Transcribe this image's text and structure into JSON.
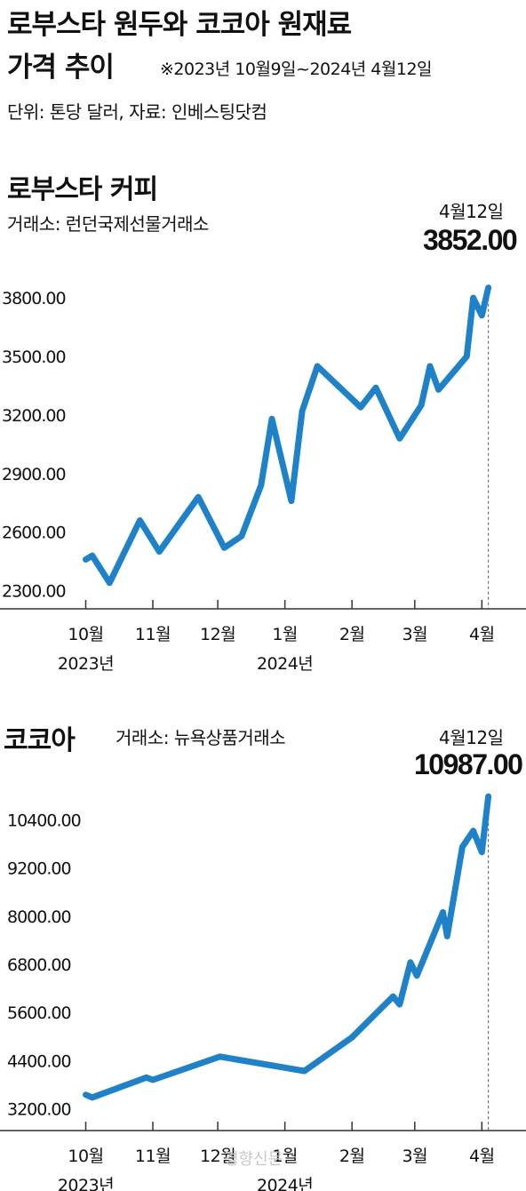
{
  "header": {
    "title_line1": "로부스타 원두와 코코아 원재료",
    "title_line2": "가격 추이",
    "period_note": "※2023년 10월9일~2024년 4월12일",
    "unit_note": "단위: 톤당 달러, 자료: 인베스팅닷컴"
  },
  "colors": {
    "line": "#1f82c8",
    "axis": "#333333",
    "dashed": "#555555"
  },
  "watermark": "경향신문",
  "chart_data": [
    {
      "type": "line",
      "title": "로부스타 커피",
      "source": "거래소: 런던국제선물거래소",
      "latest_label_date": "4월12일",
      "latest_label_value": "3852.00",
      "yticks": [
        "3800.00",
        "3500.00",
        "3200.00",
        "2900.00",
        "2600.00",
        "2300.00"
      ],
      "ytick_values": [
        3800,
        3500,
        3200,
        2900,
        2600,
        2300
      ],
      "ylim": [
        2230,
        3960
      ],
      "xlim": [
        "2023-10-01",
        "2024-04-22"
      ],
      "xtick_labels": [
        "10월",
        "11월",
        "12월",
        "1월",
        "2월",
        "3월",
        "4월"
      ],
      "xtick_dates": [
        "2023-10-09",
        "2023-11-09",
        "2023-12-09",
        "2024-01-09",
        "2024-02-09",
        "2024-03-09",
        "2024-04-09"
      ],
      "year_labels": [
        {
          "text": "2023년",
          "date": "2023-10-09"
        },
        {
          "text": "2024년",
          "date": "2024-01-09"
        }
      ],
      "series": [
        {
          "x": [
            "2023-10-09",
            "2023-10-12",
            "2023-10-20",
            "2023-11-03",
            "2023-11-12",
            "2023-11-30",
            "2023-12-12",
            "2023-12-20",
            "2023-12-29",
            "2024-01-03",
            "2024-01-12",
            "2024-01-17",
            "2024-01-24",
            "2024-02-13",
            "2024-02-20",
            "2024-03-02",
            "2024-03-12",
            "2024-03-16",
            "2024-03-20",
            "2024-04-02",
            "2024-04-05",
            "2024-04-09",
            "2024-04-12"
          ],
          "y": [
            2460,
            2480,
            2340,
            2660,
            2500,
            2780,
            2520,
            2580,
            2840,
            3180,
            2760,
            3220,
            3450,
            3240,
            3340,
            3080,
            3250,
            3450,
            3330,
            3500,
            3800,
            3710,
            3852
          ]
        }
      ]
    },
    {
      "type": "line",
      "title": "코코아",
      "source": "거래소: 뉴욕상품거래소",
      "latest_label_date": "4월12일",
      "latest_label_value": "10987.00",
      "yticks": [
        "10400.00",
        "9200.00",
        "8000.00",
        "6800.00",
        "5600.00",
        "4400.00",
        "3200.00"
      ],
      "ytick_values": [
        10400,
        9200,
        8000,
        6800,
        5600,
        4400,
        3200
      ],
      "ylim": [
        2700,
        11300
      ],
      "xlim": [
        "2023-10-01",
        "2024-04-22"
      ],
      "xtick_labels": [
        "10월",
        "11월",
        "12월",
        "1월",
        "2월",
        "3월",
        "4월"
      ],
      "xtick_dates": [
        "2023-10-09",
        "2023-11-09",
        "2023-12-09",
        "2024-01-09",
        "2024-02-09",
        "2024-03-09",
        "2024-04-09"
      ],
      "year_labels": [
        {
          "text": "2023년",
          "date": "2023-10-09"
        },
        {
          "text": "2024년",
          "date": "2024-01-09"
        }
      ],
      "series": [
        {
          "x": [
            "2023-10-09",
            "2023-10-12",
            "2023-11-06",
            "2023-11-09",
            "2023-12-10",
            "2024-01-18",
            "2024-02-09",
            "2024-02-28",
            "2024-03-02",
            "2024-03-07",
            "2024-03-10",
            "2024-03-22",
            "2024-03-24",
            "2024-03-31",
            "2024-04-05",
            "2024-04-09",
            "2024-04-12"
          ],
          "y": [
            3550,
            3480,
            3980,
            3920,
            4500,
            4140,
            4980,
            6000,
            5800,
            6850,
            6520,
            8100,
            7500,
            9730,
            10130,
            9600,
            10987
          ]
        }
      ]
    }
  ]
}
